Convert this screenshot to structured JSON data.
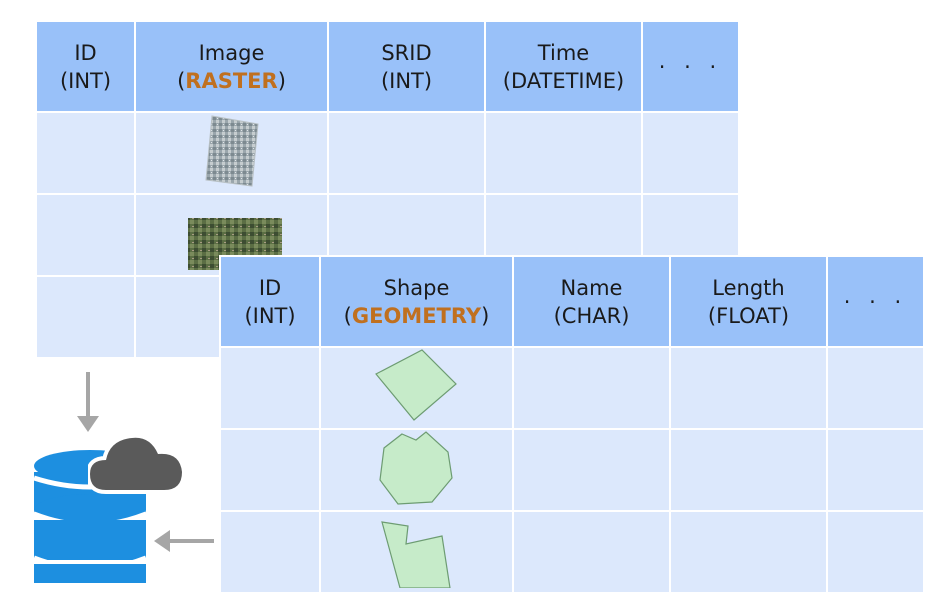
{
  "raster_table": {
    "headers": [
      {
        "name": "ID",
        "type": "(INT)"
      },
      {
        "name": "Image",
        "type_open": "(",
        "type_kw": "RASTER",
        "type_close": ")"
      },
      {
        "name": "SRID",
        "type": "(INT)"
      },
      {
        "name": "Time",
        "type": "(DATETIME)"
      },
      {
        "name": "· · ·"
      }
    ],
    "rows": 3
  },
  "vector_table": {
    "headers": [
      {
        "name": "ID",
        "type": "(INT)"
      },
      {
        "name": "Shape",
        "type_open": "(",
        "type_kw": "GEOMETRY",
        "type_close": ")"
      },
      {
        "name": "Name",
        "type": "(CHAR)"
      },
      {
        "name": "Length",
        "type": "(FLOAT)"
      },
      {
        "name": "· · ·"
      }
    ],
    "rows": 3
  },
  "colors": {
    "header_bg": "#99c1f9",
    "row_bg": "#dce8fc",
    "keyword": "#c0701f",
    "database": "#1d8fe0",
    "cloud": "#5a5a5a",
    "arrow": "#a6a6a6",
    "polygon_fill": "#c6ebc9",
    "polygon_stroke": "#6d9c72"
  },
  "icons": [
    "database-icon",
    "cloud-icon",
    "down-arrow-icon",
    "left-arrow-icon"
  ]
}
